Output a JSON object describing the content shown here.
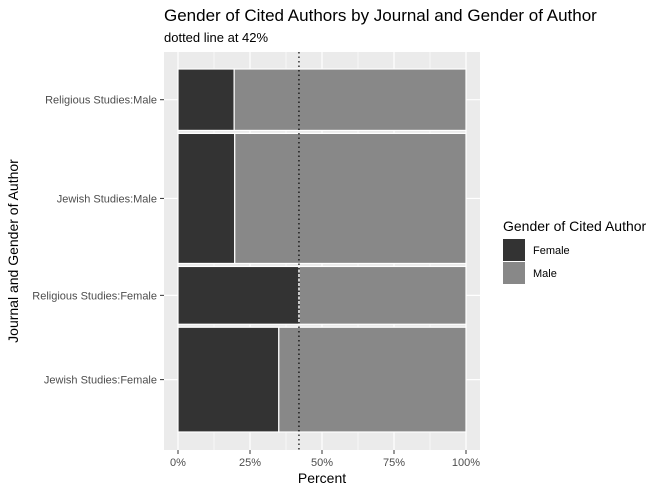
{
  "chart_data": {
    "type": "bar",
    "orientation": "horizontal",
    "stacked": true,
    "variable_width": true,
    "title": "Gender of Cited Authors by Journal and Gender of Author",
    "subtitle": "dotted line at 42%",
    "xlabel": "Percent",
    "ylabel": "Journal and Gender of Author",
    "xlim": [
      0,
      1
    ],
    "x_ticks": [
      0,
      0.25,
      0.5,
      0.75,
      1
    ],
    "x_tick_labels": [
      "0%",
      "25%",
      "50%",
      "75%",
      "100%"
    ],
    "categories": [
      "Religious Studies:Male",
      "Jewish Studies:Male",
      "Religious Studies:Female",
      "Jewish Studies:Female"
    ],
    "bar_widths": [
      0.17,
      0.36,
      0.16,
      0.29
    ],
    "series": [
      {
        "name": "Female",
        "values": [
          0.195,
          0.197,
          0.42,
          0.35
        ]
      },
      {
        "name": "Male",
        "values": [
          0.805,
          0.803,
          0.58,
          0.65
        ]
      }
    ],
    "reference_line": {
      "x": 0.42,
      "style": "dotted"
    },
    "legend": {
      "title": "Gender of Cited Author",
      "position": "right",
      "entries": [
        "Female",
        "Male"
      ]
    },
    "colors": {
      "Female": "#333333",
      "Male": "#888888",
      "panel": "#ebebeb",
      "grid": "#ffffff"
    },
    "grid": true
  }
}
